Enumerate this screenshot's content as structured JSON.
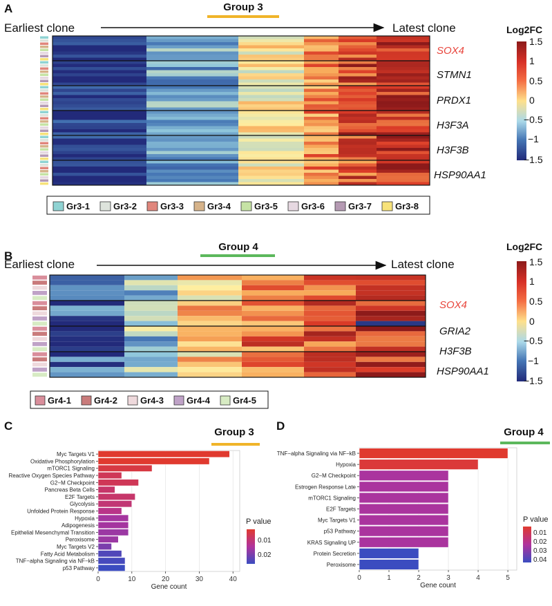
{
  "panels": {
    "a": {
      "letter": "A",
      "group_title": "Group 3",
      "group_color": "#f0b429",
      "earliest_label": "Earliest clone",
      "latest_label": "Latest clone",
      "genes": [
        "SOX4",
        "STMN1",
        "PRDX1",
        "H3F3A",
        "H3F3B",
        "HSP90AA1"
      ],
      "highlight_gene": "SOX4",
      "legend": [
        {
          "label": "Gr3-1",
          "color": "#8fd3d3"
        },
        {
          "label": "Gr3-2",
          "color": "#dde3dc"
        },
        {
          "label": "Gr3-3",
          "color": "#e0867c"
        },
        {
          "label": "Gr3-4",
          "color": "#d6b38a"
        },
        {
          "label": "Gr3-5",
          "color": "#c6e3a5"
        },
        {
          "label": "Gr3-6",
          "color": "#e6d8e1"
        },
        {
          "label": "Gr3-7",
          "color": "#b59ab3"
        },
        {
          "label": "Gr3-8",
          "color": "#f7e27a"
        }
      ],
      "colorbar": {
        "title": "Log2FC",
        "ticks": [
          "1.5",
          "1",
          "0.5",
          "0",
          "−0.5",
          "−1",
          "−1.5"
        ]
      }
    },
    "b": {
      "letter": "B",
      "group_title": "Group 4",
      "group_color": "#5cb85c",
      "earliest_label": "Earliest clone",
      "latest_label": "Latest clone",
      "genes": [
        "SOX4",
        "GRIA2",
        "H3F3B",
        "HSP90AA1"
      ],
      "highlight_gene": "SOX4",
      "legend": [
        {
          "label": "Gr4-1",
          "color": "#d98e9b"
        },
        {
          "label": "Gr4-2",
          "color": "#c97b7b"
        },
        {
          "label": "Gr4-3",
          "color": "#eed9dc"
        },
        {
          "label": "Gr4-4",
          "color": "#bfa2c7"
        },
        {
          "label": "Gr4-5",
          "color": "#d7ebc3"
        }
      ],
      "colorbar": {
        "title": "Log2FC",
        "ticks": [
          "1.5",
          "1",
          "0.5",
          "0",
          "−0.5",
          "−1",
          "−1.5"
        ]
      }
    },
    "c": {
      "letter": "C",
      "group_title": "Group 3",
      "group_color": "#f0b429"
    },
    "d": {
      "letter": "D",
      "group_title": "Group 4",
      "group_color": "#5cb85c"
    }
  },
  "chart_data": [
    {
      "type": "bar",
      "panel": "C",
      "title": "Group 3",
      "orientation": "horizontal",
      "categories": [
        "Myc Targets V1",
        "Oxidative Phosphorylation",
        "mTORC1 Signaling",
        "Reactive Oxygen Species Pathway",
        "G2−M Checkpoint",
        "Pancreas Beta Cells",
        "E2F Targets",
        "Glycolysis",
        "Unfolded Protein Response",
        "Hypoxia",
        "Adipogenesis",
        "Epithelial Mesenchymal Transition",
        "Peroxisome",
        "Myc Targets V2",
        "Fatty Acid Metabolism",
        "TNF−alpha Signaling via NF−kB",
        "p53 Pathway"
      ],
      "values": [
        39,
        33,
        16,
        7,
        12,
        5,
        11,
        10,
        7,
        9,
        9,
        9,
        6,
        4,
        7,
        8,
        8
      ],
      "pvalues": [
        0.002,
        0.002,
        0.004,
        0.006,
        0.006,
        0.008,
        0.008,
        0.009,
        0.011,
        0.014,
        0.014,
        0.015,
        0.015,
        0.018,
        0.022,
        0.023,
        0.024
      ],
      "xlabel": "Gene count",
      "ylabel": "",
      "xlim": [
        0,
        42
      ],
      "xticks": [
        "0",
        "10",
        "20",
        "30",
        "40"
      ],
      "color_scale": {
        "title": "P value",
        "ticks": [
          "0.01",
          "0.02"
        ],
        "low_color": "#e03a2f",
        "high_color": "#3b4cc0",
        "range": [
          0.002,
          0.024
        ]
      }
    },
    {
      "type": "bar",
      "panel": "D",
      "title": "Group 4",
      "orientation": "horizontal",
      "categories": [
        "TNF−alpha Signaling via NF−kB",
        "Hypoxia",
        "G2−M Checkpoint",
        "Estrogen Response Late",
        "mTORC1 Signaling",
        "E2F Targets",
        "Myc Targets V1",
        "p53 Pathway",
        "KRAS Signaling UP",
        "Protein Secretion",
        "Peroxisome"
      ],
      "values": [
        5,
        4,
        3,
        3,
        3,
        3,
        3,
        3,
        3,
        2,
        2
      ],
      "pvalues": [
        0.003,
        0.005,
        0.025,
        0.025,
        0.025,
        0.025,
        0.025,
        0.025,
        0.025,
        0.045,
        0.045
      ],
      "xlabel": "Gene count",
      "ylabel": "",
      "xlim": [
        0,
        5.3
      ],
      "xticks": [
        "0",
        "1",
        "2",
        "3",
        "4",
        "5"
      ],
      "color_scale": {
        "title": "P value",
        "ticks": [
          "0.01",
          "0.02",
          "0.03",
          "0.04"
        ],
        "low_color": "#e03a2f",
        "high_color": "#3b4cc0",
        "range": [
          0.003,
          0.045
        ]
      }
    }
  ]
}
